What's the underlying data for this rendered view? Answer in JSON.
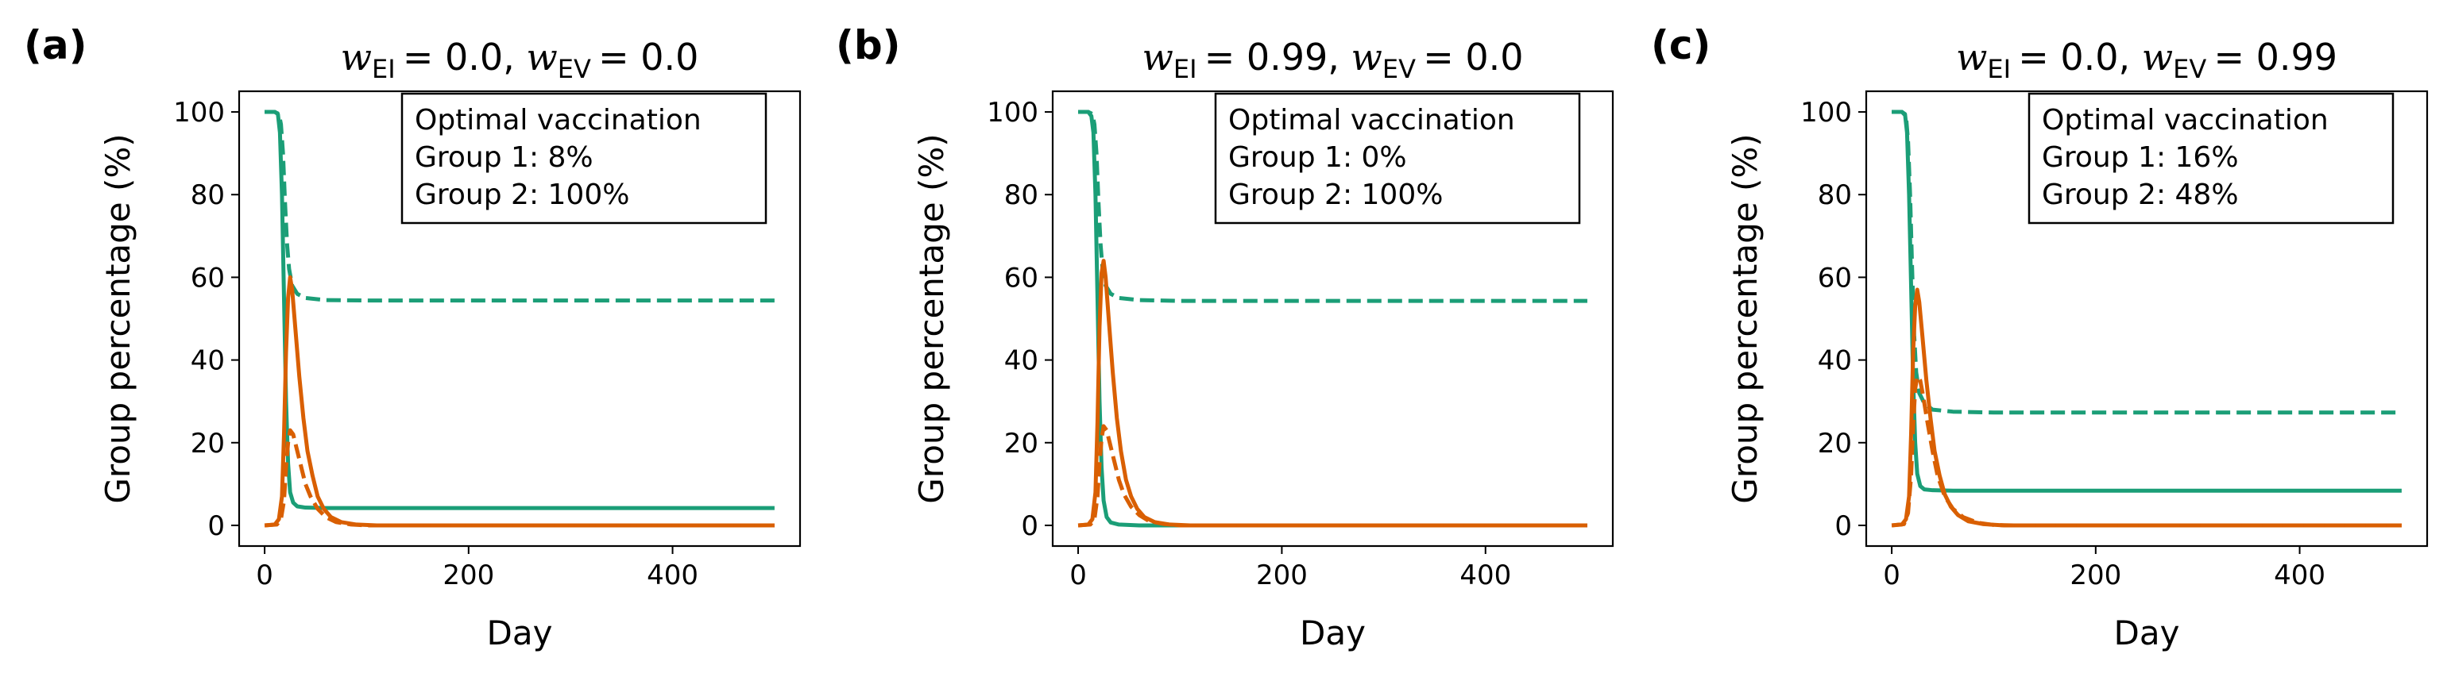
{
  "chart_data": [
    {
      "type": "line",
      "panel_label": "(a)",
      "title": {
        "w1_symbol": "w",
        "w1_sub": "EI",
        "w1_value": "= 0.0,",
        "w2_symbol": "w",
        "w2_sub": "EV",
        "w2_value": "= 0.0"
      },
      "xlabel": "Day",
      "ylabel": "Group percentage (%)",
      "xlim": [
        -25,
        525
      ],
      "ylim": [
        -5,
        105
      ],
      "xticks": [
        0,
        200,
        400
      ],
      "yticks": [
        0,
        20,
        40,
        60,
        80,
        100
      ],
      "annotation": [
        "Optimal vaccination",
        "Group 1: 8%",
        "Group 2: 100%"
      ],
      "series": [
        {
          "color": "#1b9e77",
          "style": "solid",
          "points": [
            [
              0,
              100
            ],
            [
              10,
              100
            ],
            [
              13,
              99.5
            ],
            [
              15,
              95
            ],
            [
              17,
              80
            ],
            [
              19,
              55
            ],
            [
              21,
              30
            ],
            [
              23,
              15
            ],
            [
              25,
              8
            ],
            [
              28,
              5.5
            ],
            [
              32,
              4.6
            ],
            [
              40,
              4.3
            ],
            [
              60,
              4.2
            ],
            [
              100,
              4.2
            ],
            [
              500,
              4.2
            ]
          ]
        },
        {
          "color": "#1b9e77",
          "style": "dashed",
          "points": [
            [
              0,
              100
            ],
            [
              10,
              100
            ],
            [
              14,
              99.5
            ],
            [
              16,
              97
            ],
            [
              18,
              90
            ],
            [
              20,
              78
            ],
            [
              22,
              68
            ],
            [
              24,
              62
            ],
            [
              27,
              58
            ],
            [
              32,
              56
            ],
            [
              40,
              55
            ],
            [
              60,
              54.5
            ],
            [
              100,
              54.4
            ],
            [
              500,
              54.4
            ]
          ]
        },
        {
          "color": "#d95f02",
          "style": "solid",
          "points": [
            [
              0,
              0
            ],
            [
              10,
              0.2
            ],
            [
              14,
              1.5
            ],
            [
              17,
              7
            ],
            [
              19,
              22
            ],
            [
              21,
              42
            ],
            [
              23,
              55
            ],
            [
              25,
              60
            ],
            [
              27,
              57
            ],
            [
              30,
              48
            ],
            [
              34,
              36
            ],
            [
              38,
              26
            ],
            [
              42,
              18
            ],
            [
              47,
              12
            ],
            [
              52,
              7
            ],
            [
              58,
              4
            ],
            [
              65,
              2
            ],
            [
              75,
              0.8
            ],
            [
              90,
              0.2
            ],
            [
              110,
              0
            ],
            [
              500,
              0
            ]
          ]
        },
        {
          "color": "#d95f02",
          "style": "dashed",
          "points": [
            [
              0,
              0
            ],
            [
              12,
              0.2
            ],
            [
              16,
              1.5
            ],
            [
              19,
              6
            ],
            [
              21,
              14
            ],
            [
              23,
              20
            ],
            [
              25,
              23
            ],
            [
              28,
              22
            ],
            [
              31,
              19
            ],
            [
              35,
              15
            ],
            [
              40,
              10
            ],
            [
              45,
              7
            ],
            [
              52,
              4
            ],
            [
              60,
              2
            ],
            [
              70,
              0.8
            ],
            [
              85,
              0.2
            ],
            [
              100,
              0
            ],
            [
              500,
              0
            ]
          ]
        }
      ]
    },
    {
      "type": "line",
      "panel_label": "(b)",
      "title": {
        "w1_symbol": "w",
        "w1_sub": "EI",
        "w1_value": "= 0.99,",
        "w2_symbol": "w",
        "w2_sub": "EV",
        "w2_value": "= 0.0"
      },
      "xlabel": "Day",
      "ylabel": "Group percentage (%)",
      "xlim": [
        -25,
        525
      ],
      "ylim": [
        -5,
        105
      ],
      "xticks": [
        0,
        200,
        400
      ],
      "yticks": [
        0,
        20,
        40,
        60,
        80,
        100
      ],
      "annotation": [
        "Optimal vaccination",
        "Group 1: 0%",
        "Group 2: 100%"
      ],
      "series": [
        {
          "color": "#1b9e77",
          "style": "solid",
          "points": [
            [
              0,
              100
            ],
            [
              10,
              100
            ],
            [
              13,
              99
            ],
            [
              15,
              95
            ],
            [
              17,
              80
            ],
            [
              19,
              55
            ],
            [
              21,
              30
            ],
            [
              23,
              14
            ],
            [
              25,
              6
            ],
            [
              28,
              2
            ],
            [
              32,
              0.7
            ],
            [
              40,
              0.2
            ],
            [
              60,
              0
            ],
            [
              500,
              0
            ]
          ]
        },
        {
          "color": "#1b9e77",
          "style": "dashed",
          "points": [
            [
              0,
              100
            ],
            [
              10,
              100
            ],
            [
              14,
              99.5
            ],
            [
              16,
              97
            ],
            [
              18,
              90
            ],
            [
              20,
              78
            ],
            [
              22,
              68
            ],
            [
              24,
              62
            ],
            [
              27,
              58
            ],
            [
              32,
              56
            ],
            [
              40,
              55
            ],
            [
              60,
              54.5
            ],
            [
              100,
              54.3
            ],
            [
              500,
              54.3
            ]
          ]
        },
        {
          "color": "#d95f02",
          "style": "solid",
          "points": [
            [
              0,
              0
            ],
            [
              10,
              0.2
            ],
            [
              14,
              1.5
            ],
            [
              17,
              8
            ],
            [
              19,
              25
            ],
            [
              21,
              48
            ],
            [
              23,
              61
            ],
            [
              25,
              64
            ],
            [
              27,
              60
            ],
            [
              30,
              50
            ],
            [
              34,
              37
            ],
            [
              38,
              26
            ],
            [
              42,
              18
            ],
            [
              47,
              11
            ],
            [
              52,
              7
            ],
            [
              58,
              4
            ],
            [
              65,
              2
            ],
            [
              75,
              0.8
            ],
            [
              90,
              0.2
            ],
            [
              110,
              0
            ],
            [
              500,
              0
            ]
          ]
        },
        {
          "color": "#d95f02",
          "style": "dashed",
          "points": [
            [
              0,
              0
            ],
            [
              12,
              0.2
            ],
            [
              16,
              1.5
            ],
            [
              19,
              7
            ],
            [
              21,
              15
            ],
            [
              23,
              21
            ],
            [
              25,
              24
            ],
            [
              28,
              23
            ],
            [
              31,
              20
            ],
            [
              35,
              16
            ],
            [
              40,
              11
            ],
            [
              45,
              7.5
            ],
            [
              52,
              4.5
            ],
            [
              60,
              2.5
            ],
            [
              70,
              1
            ],
            [
              85,
              0.3
            ],
            [
              100,
              0
            ],
            [
              500,
              0
            ]
          ]
        }
      ]
    },
    {
      "type": "line",
      "panel_label": "(c)",
      "title": {
        "w1_symbol": "w",
        "w1_sub": "EI",
        "w1_value": "= 0.0,",
        "w2_symbol": "w",
        "w2_sub": "EV",
        "w2_value": "= 0.99"
      },
      "xlabel": "Day",
      "ylabel": "Group percentage (%)",
      "xlim": [
        -25,
        525
      ],
      "ylim": [
        -5,
        105
      ],
      "xticks": [
        0,
        200,
        400
      ],
      "yticks": [
        0,
        20,
        40,
        60,
        80,
        100
      ],
      "annotation": [
        "Optimal vaccination",
        "Group 1: 16%",
        "Group 2: 48%"
      ],
      "series": [
        {
          "color": "#1b9e77",
          "style": "solid",
          "points": [
            [
              0,
              100
            ],
            [
              10,
              100
            ],
            [
              13,
              99.5
            ],
            [
              15,
              95
            ],
            [
              17,
              80
            ],
            [
              19,
              58
            ],
            [
              21,
              35
            ],
            [
              23,
              20
            ],
            [
              25,
              12.5
            ],
            [
              28,
              9.5
            ],
            [
              32,
              8.7
            ],
            [
              40,
              8.5
            ],
            [
              60,
              8.4
            ],
            [
              100,
              8.4
            ],
            [
              500,
              8.4
            ]
          ]
        },
        {
          "color": "#1b9e77",
          "style": "dashed",
          "points": [
            [
              0,
              100
            ],
            [
              10,
              100
            ],
            [
              14,
              99
            ],
            [
              16,
              93
            ],
            [
              18,
              80
            ],
            [
              20,
              62
            ],
            [
              22,
              46
            ],
            [
              24,
              37
            ],
            [
              27,
              32
            ],
            [
              32,
              29.5
            ],
            [
              40,
              28
            ],
            [
              60,
              27.5
            ],
            [
              100,
              27.3
            ],
            [
              500,
              27.3
            ]
          ]
        },
        {
          "color": "#d95f02",
          "style": "solid",
          "points": [
            [
              0,
              0
            ],
            [
              10,
              0.2
            ],
            [
              14,
              1.5
            ],
            [
              17,
              7
            ],
            [
              19,
              22
            ],
            [
              21,
              42
            ],
            [
              23,
              53
            ],
            [
              25,
              57
            ],
            [
              27,
              54
            ],
            [
              30,
              46
            ],
            [
              34,
              35
            ],
            [
              38,
              26
            ],
            [
              42,
              18
            ],
            [
              47,
              12
            ],
            [
              52,
              7.5
            ],
            [
              58,
              4.5
            ],
            [
              65,
              2.5
            ],
            [
              75,
              1
            ],
            [
              90,
              0.3
            ],
            [
              110,
              0
            ],
            [
              500,
              0
            ]
          ]
        },
        {
          "color": "#d95f02",
          "style": "dashed",
          "points": [
            [
              0,
              0
            ],
            [
              12,
              0.3
            ],
            [
              16,
              3
            ],
            [
              19,
              12
            ],
            [
              21,
              24
            ],
            [
              23,
              33
            ],
            [
              25,
              36
            ],
            [
              28,
              35
            ],
            [
              31,
              31
            ],
            [
              35,
              25
            ],
            [
              40,
              18
            ],
            [
              45,
              12
            ],
            [
              52,
              7
            ],
            [
              60,
              4
            ],
            [
              70,
              2
            ],
            [
              85,
              0.6
            ],
            [
              100,
              0.1
            ],
            [
              120,
              0
            ],
            [
              500,
              0
            ]
          ]
        }
      ]
    }
  ]
}
